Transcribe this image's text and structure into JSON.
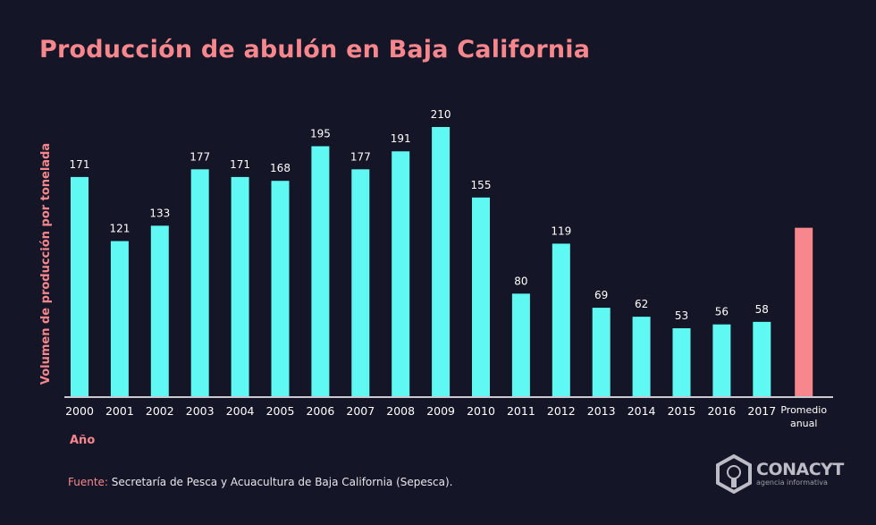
{
  "chart_data": {
    "type": "bar",
    "title": "Producción de abulón en Baja California",
    "xlabel": "Año",
    "ylabel": "Volumen de producción por tonelada",
    "categories": [
      "2000",
      "2001",
      "2002",
      "2003",
      "2004",
      "2005",
      "2006",
      "2007",
      "2008",
      "2009",
      "2010",
      "2011",
      "2012",
      "2013",
      "2014",
      "2015",
      "2016",
      "2017"
    ],
    "values": [
      171,
      121,
      133,
      177,
      171,
      168,
      195,
      177,
      191,
      210,
      155,
      80,
      119,
      69,
      62,
      53,
      56,
      58
    ],
    "average": {
      "label_line1": "Promedio",
      "label_line2": "anual",
      "value": 131.4
    },
    "ylim": [
      0,
      210
    ],
    "grid": false,
    "colors": {
      "bars": "#5ff8f3",
      "average": "#f7878d",
      "axis": "#c9c9d0",
      "labels": "#ffffff",
      "accent": "#f7878d",
      "background": "#141526"
    }
  },
  "footer": {
    "source_label": "Fuente:",
    "source_text": " Secretaría de Pesca y Acuacultura de Baja California (Sepesca)."
  },
  "logo": {
    "name": "CONACYT",
    "sub": "agencia informativa"
  }
}
